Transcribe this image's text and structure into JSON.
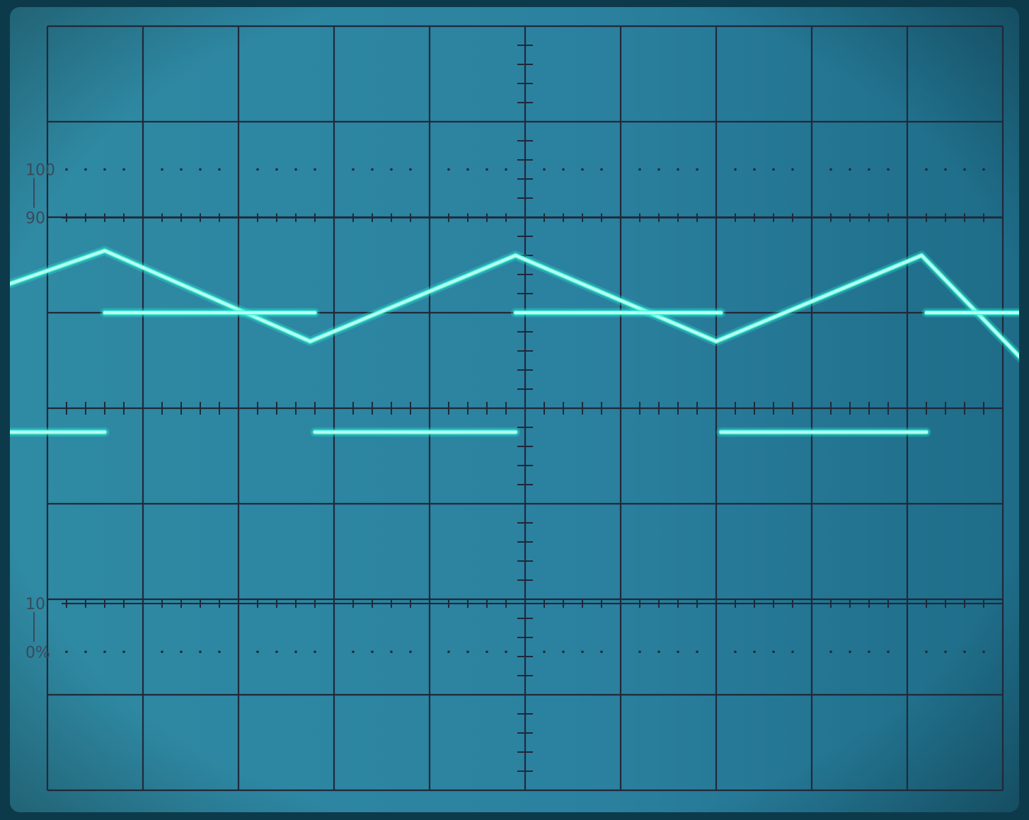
{
  "graticule": {
    "divisions_x": 10,
    "divisions_y": 8,
    "minor_per_division": 5,
    "rise_labels": [
      "100",
      "90",
      "10",
      "0%"
    ],
    "rise_label_levels": [
      100,
      90,
      10,
      0
    ]
  },
  "colors": {
    "background": "#0d3a4a",
    "screen_left": "#2f8aa3",
    "screen_right": "#1e6c88",
    "grid": "#20293a",
    "trace": "#3ff8de"
  },
  "traces": [
    {
      "name": "",
      "kind": "triangle",
      "points_div": [
        [
          -0.4,
          1.3
        ],
        [
          0.6,
          1.65
        ],
        [
          2.75,
          0.7
        ],
        [
          4.9,
          1.6
        ],
        [
          7.0,
          0.7
        ],
        [
          9.15,
          1.6
        ],
        [
          10.6,
          0.1
        ]
      ]
    },
    {
      "name": "",
      "kind": "square",
      "high_div": 1.0,
      "low_div": -0.25,
      "segments": [
        {
          "level": "low",
          "x": [
            -0.4,
            0.6
          ]
        },
        {
          "level": "high",
          "x": [
            0.6,
            2.8
          ]
        },
        {
          "level": "low",
          "x": [
            2.8,
            4.9
          ]
        },
        {
          "level": "high",
          "x": [
            4.9,
            7.05
          ]
        },
        {
          "level": "low",
          "x": [
            7.05,
            9.2
          ]
        },
        {
          "level": "high",
          "x": [
            9.2,
            10.6
          ]
        }
      ]
    }
  ]
}
